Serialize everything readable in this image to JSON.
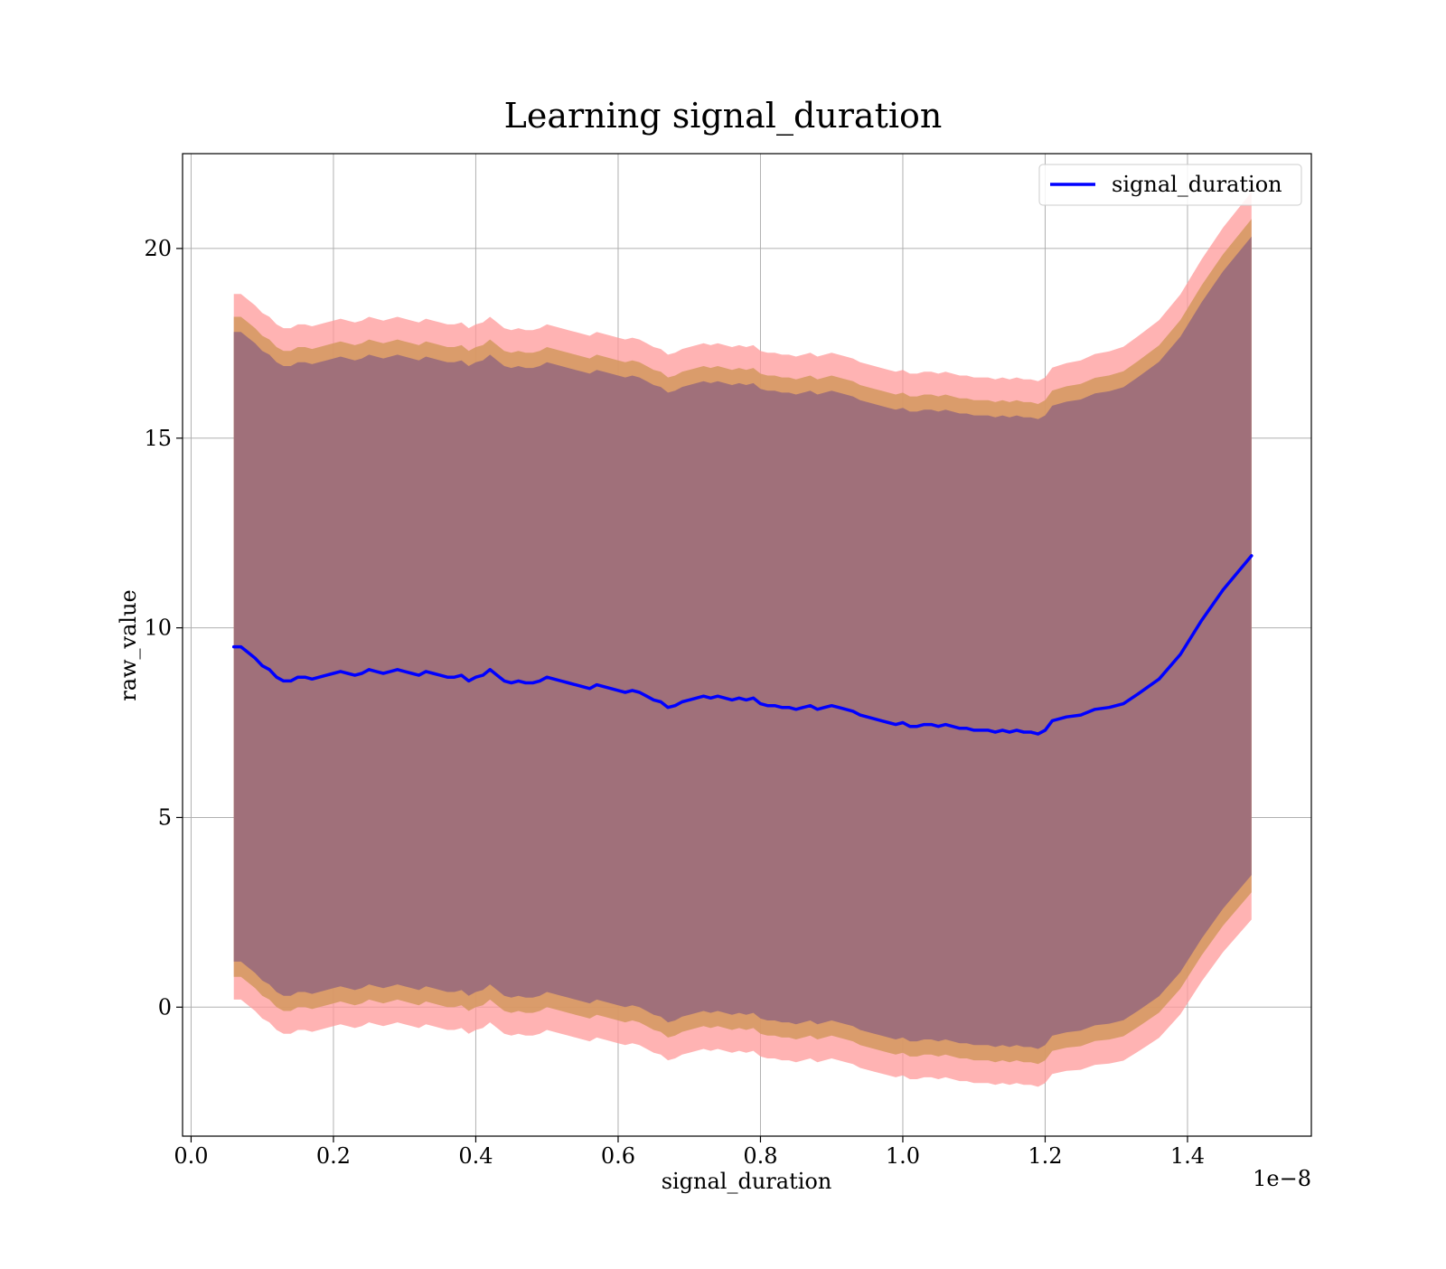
{
  "chart_data": {
    "type": "line",
    "title": "Learning signal_duration",
    "xlabel": "signal_duration",
    "ylabel": "raw_value",
    "x_offset_label": "1e−8",
    "xlim": [
      -0.012,
      1.574
    ],
    "ylim": [
      -3.4,
      22.5
    ],
    "x_ticks": [
      0.0,
      0.2,
      0.4,
      0.6,
      0.8,
      1.0,
      1.2,
      1.4
    ],
    "x_tick_labels": [
      "0.0",
      "0.2",
      "0.4",
      "0.6",
      "0.8",
      "1.0",
      "1.2",
      "1.4"
    ],
    "y_ticks": [
      0,
      5,
      10,
      15,
      20
    ],
    "y_tick_labels": [
      "0",
      "5",
      "10",
      "15",
      "20"
    ],
    "grid": true,
    "legend_position": "top-right",
    "colors": {
      "line": "#0000ff",
      "band_outer": "#ff9999",
      "band_middle": "#d4985e",
      "band_inner": "#a0707a",
      "grid": "#b0b0b0"
    },
    "series": [
      {
        "name": "signal_duration",
        "x": [
          0.06,
          0.07,
          0.08,
          0.09,
          0.1,
          0.11,
          0.12,
          0.13,
          0.14,
          0.15,
          0.16,
          0.17,
          0.18,
          0.19,
          0.2,
          0.21,
          0.22,
          0.23,
          0.24,
          0.25,
          0.26,
          0.27,
          0.28,
          0.29,
          0.3,
          0.31,
          0.32,
          0.33,
          0.34,
          0.35,
          0.36,
          0.37,
          0.38,
          0.39,
          0.4,
          0.41,
          0.42,
          0.43,
          0.44,
          0.45,
          0.46,
          0.47,
          0.48,
          0.49,
          0.5,
          0.51,
          0.52,
          0.53,
          0.54,
          0.55,
          0.56,
          0.57,
          0.58,
          0.59,
          0.6,
          0.61,
          0.62,
          0.63,
          0.64,
          0.65,
          0.66,
          0.67,
          0.68,
          0.69,
          0.7,
          0.71,
          0.72,
          0.73,
          0.74,
          0.75,
          0.76,
          0.77,
          0.78,
          0.79,
          0.8,
          0.81,
          0.82,
          0.83,
          0.84,
          0.85,
          0.86,
          0.87,
          0.88,
          0.89,
          0.9,
          0.91,
          0.92,
          0.93,
          0.94,
          0.95,
          0.96,
          0.97,
          0.98,
          0.99,
          1.0,
          1.01,
          1.02,
          1.03,
          1.04,
          1.05,
          1.06,
          1.07,
          1.08,
          1.09,
          1.1,
          1.11,
          1.12,
          1.13,
          1.14,
          1.15,
          1.16,
          1.17,
          1.18,
          1.19,
          1.2,
          1.21,
          1.23,
          1.25,
          1.27,
          1.29,
          1.31,
          1.33,
          1.36,
          1.39,
          1.42,
          1.45,
          1.49
        ],
        "values": [
          9.5,
          9.5,
          9.35,
          9.2,
          9.0,
          8.9,
          8.7,
          8.6,
          8.6,
          8.7,
          8.7,
          8.65,
          8.7,
          8.75,
          8.8,
          8.85,
          8.8,
          8.75,
          8.8,
          8.9,
          8.85,
          8.8,
          8.85,
          8.9,
          8.85,
          8.8,
          8.75,
          8.85,
          8.8,
          8.75,
          8.7,
          8.7,
          8.75,
          8.6,
          8.7,
          8.75,
          8.9,
          8.75,
          8.6,
          8.55,
          8.6,
          8.55,
          8.55,
          8.6,
          8.7,
          8.65,
          8.6,
          8.55,
          8.5,
          8.45,
          8.4,
          8.5,
          8.45,
          8.4,
          8.35,
          8.3,
          8.35,
          8.3,
          8.2,
          8.1,
          8.05,
          7.9,
          7.95,
          8.05,
          8.1,
          8.15,
          8.2,
          8.15,
          8.2,
          8.15,
          8.1,
          8.15,
          8.1,
          8.15,
          8.0,
          7.95,
          7.95,
          7.9,
          7.9,
          7.85,
          7.9,
          7.95,
          7.85,
          7.9,
          7.95,
          7.9,
          7.85,
          7.8,
          7.7,
          7.65,
          7.6,
          7.55,
          7.5,
          7.45,
          7.5,
          7.4,
          7.4,
          7.45,
          7.45,
          7.4,
          7.45,
          7.4,
          7.35,
          7.35,
          7.3,
          7.3,
          7.3,
          7.25,
          7.3,
          7.25,
          7.3,
          7.25,
          7.25,
          7.2,
          7.3,
          7.55,
          7.65,
          7.7,
          7.85,
          7.9,
          8.0,
          8.25,
          8.65,
          9.3,
          10.2,
          11.0,
          11.9
        ]
      }
    ],
    "bands": [
      {
        "offset": 9.3,
        "widen_after": 1.2,
        "widen_rate": 1.0
      },
      {
        "offset": 8.7,
        "widen_after": 1.2,
        "widen_rate": 0.6
      },
      {
        "offset": 8.3,
        "widen_after": 1.2,
        "widen_rate": 0.4
      }
    ]
  }
}
